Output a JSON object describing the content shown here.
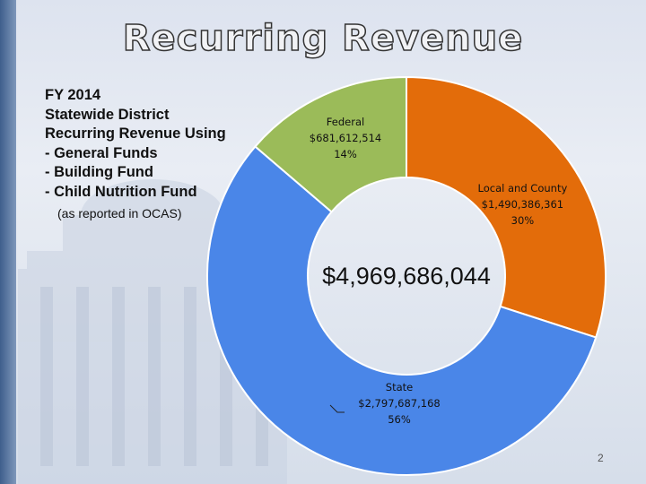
{
  "title": "Recurring Revenue",
  "description": {
    "lines": [
      "FY 2014",
      "Statewide District",
      "Recurring Revenue Using",
      "- General Funds",
      "- Building Fund",
      "- Child Nutrition Fund"
    ],
    "note": "(as reported in OCAS)"
  },
  "chart_data": {
    "type": "pie",
    "style": "donut",
    "center_label": "$4,969,686,044",
    "slices": [
      {
        "name": "Local and County",
        "amount": "$1,490,386,361",
        "percent_label": "30%",
        "value": 1490386361,
        "color": "#e36c0a"
      },
      {
        "name": "State",
        "amount": "$2,797,687,168",
        "percent_label": "56%",
        "value": 2797687168,
        "color": "#4a86e8"
      },
      {
        "name": "Federal",
        "amount": "$681,612,514",
        "percent_label": "14%",
        "value": 681612514,
        "color": "#9bbb59"
      }
    ]
  },
  "page_number": "2"
}
